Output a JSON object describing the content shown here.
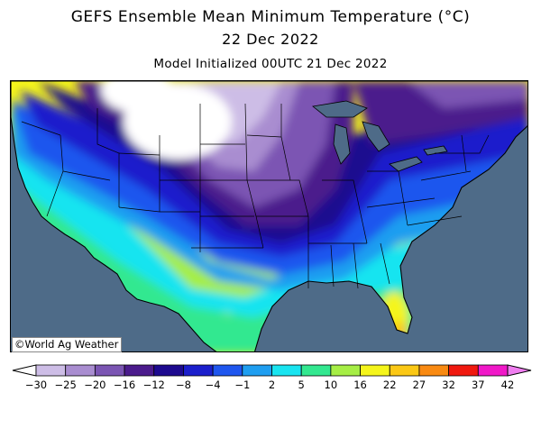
{
  "header": {
    "title": "GEFS Ensemble Mean Minimum Temperature (°C)",
    "date": "22 Dec 2022",
    "initialized": "Model Initialized 00UTC 21 Dec 2022"
  },
  "credit": "©World Ag Weather",
  "legend": {
    "unit": "°C",
    "ticks": [
      "-30",
      "-25",
      "-20",
      "-16",
      "-12",
      "-8",
      "-4",
      "-1",
      "2",
      "5",
      "10",
      "16",
      "22",
      "27",
      "32",
      "37",
      "42"
    ],
    "colors": [
      "#ffffff",
      "#cdbde6",
      "#a98dd0",
      "#7b55b3",
      "#4b1b8c",
      "#1d0a8f",
      "#1b1fcc",
      "#1f56ee",
      "#1f9ef0",
      "#19e4f0",
      "#33e890",
      "#a6ee45",
      "#f5f51b",
      "#fbc815",
      "#f98a12",
      "#f0190f",
      "#f018c8",
      "#f07ef0"
    ]
  },
  "map": {
    "region": "Continental United States",
    "ocean_color": "#4e6b88"
  }
}
